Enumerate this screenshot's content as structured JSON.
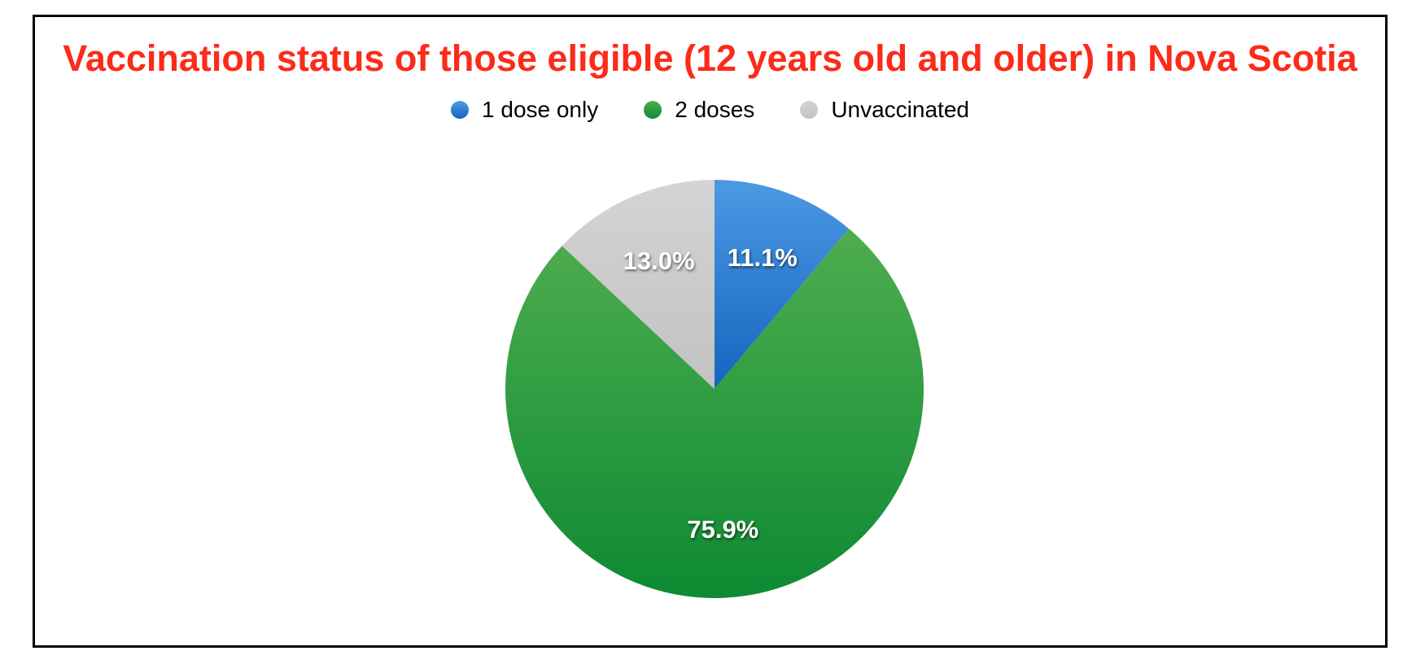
{
  "chart_data": {
    "type": "pie",
    "title": "Vaccination status of those eligible (12 years old and older) in Nova Scotia",
    "title_color": "#fb2b1a",
    "legend_position": "top",
    "start_angle_deg": 0,
    "direction": "clockwise",
    "label_radius_fraction": 0.67,
    "label_text_color": "#ffffff",
    "slices": [
      {
        "label": "1 dose only",
        "value": 11.1,
        "value_label": "11.1%",
        "color": "#2e86d9",
        "color_light": "#4c99e3",
        "color_dark": "#1565c0"
      },
      {
        "label": "2 doses",
        "value": 75.9,
        "value_label": "75.9%",
        "color": "#2f9f43",
        "color_light": "#4fad4e",
        "color_dark": "#0d8a34"
      },
      {
        "label": "Unvaccinated",
        "value": 13.0,
        "value_label": "13.0%",
        "color": "#c9c9c9",
        "color_light": "#d4d4d4",
        "color_dark": "#c2c2c2"
      }
    ]
  }
}
